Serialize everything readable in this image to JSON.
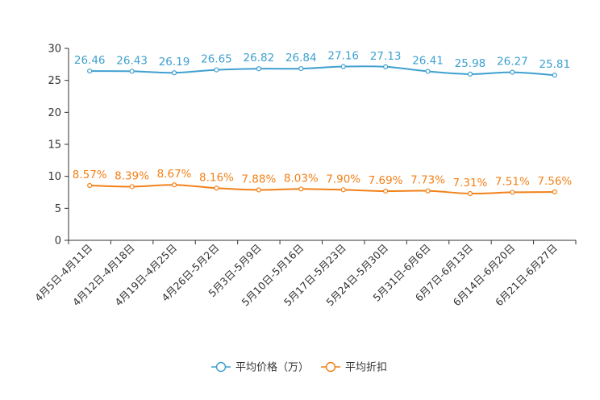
{
  "chart_data": {
    "type": "line",
    "title": "",
    "xlabel": "",
    "ylabel": "",
    "ylim": [
      0,
      30
    ],
    "yticks": [
      0,
      5,
      10,
      15,
      20,
      25,
      30
    ],
    "grid": false,
    "legend_position": "bottom-center",
    "categories": [
      "4月5日-4月11日",
      "4月12日-4月18日",
      "4月19日-4月25日",
      "4月26日-5月2日",
      "5月3日-5月9日",
      "5月10日-5月16日",
      "5月17日-5月23日",
      "5月24日-5月30日",
      "5月31日-6月6日",
      "6月7日-6月13日",
      "6月14日-6月20日",
      "6月21日-6月27日"
    ],
    "series": [
      {
        "name": "平均价格（万）",
        "color": "#3fa0d0",
        "values": [
          26.46,
          26.43,
          26.19,
          26.65,
          26.82,
          26.84,
          27.16,
          27.13,
          26.41,
          25.98,
          26.27,
          25.81
        ],
        "labels": [
          "26.46",
          "26.43",
          "26.19",
          "26.65",
          "26.82",
          "26.84",
          "27.16",
          "27.13",
          "26.41",
          "25.98",
          "26.27",
          "25.81"
        ]
      },
      {
        "name": "平均折扣",
        "color": "#f28118",
        "values": [
          8.57,
          8.39,
          8.67,
          8.16,
          7.88,
          8.03,
          7.9,
          7.69,
          7.73,
          7.31,
          7.51,
          7.56
        ],
        "labels": [
          "8.57%",
          "8.39%",
          "8.67%",
          "8.16%",
          "7.88%",
          "8.03%",
          "7.90%",
          "7.69%",
          "7.73%",
          "7.31%",
          "7.51%",
          "7.56%"
        ]
      }
    ]
  }
}
